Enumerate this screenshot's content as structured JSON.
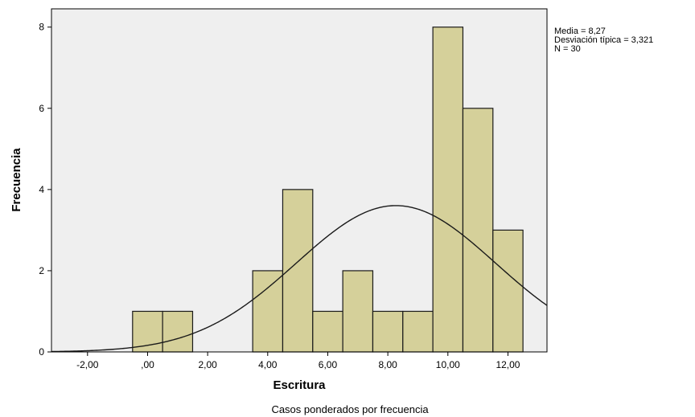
{
  "chart_data": {
    "type": "bar",
    "subtype": "histogram",
    "xlabel": "Escritura",
    "ylabel": "Frecuencia",
    "footnote": "Casos ponderados por frecuencia",
    "stats": {
      "mean_label": "Media = 8,27",
      "sd_label": "Desviación típica = 3,321",
      "n_label": "N = 30",
      "mean": 8.27,
      "sd": 3.321,
      "n": 30
    },
    "bin_width": 1,
    "bins": [
      {
        "center": 0,
        "value": 1
      },
      {
        "center": 1,
        "value": 1
      },
      {
        "center": 4,
        "value": 2
      },
      {
        "center": 5,
        "value": 4
      },
      {
        "center": 6,
        "value": 1
      },
      {
        "center": 7,
        "value": 2
      },
      {
        "center": 8,
        "value": 1
      },
      {
        "center": 9,
        "value": 1
      },
      {
        "center": 10,
        "value": 8
      },
      {
        "center": 11,
        "value": 6
      },
      {
        "center": 12,
        "value": 3
      }
    ],
    "normal_curve": true,
    "xlim": [
      -3.2,
      13.3
    ],
    "ylim": [
      0,
      8.45
    ],
    "xticks": [
      {
        "value": -2,
        "label": "-2,00"
      },
      {
        "value": 0,
        "label": ",00"
      },
      {
        "value": 2,
        "label": "2,00"
      },
      {
        "value": 4,
        "label": "4,00"
      },
      {
        "value": 6,
        "label": "6,00"
      },
      {
        "value": 8,
        "label": "8,00"
      },
      {
        "value": 10,
        "label": "10,00"
      },
      {
        "value": 12,
        "label": "12,00"
      }
    ],
    "yticks": [
      {
        "value": 0,
        "label": "0"
      },
      {
        "value": 2,
        "label": "2"
      },
      {
        "value": 4,
        "label": "4"
      },
      {
        "value": 6,
        "label": "6"
      },
      {
        "value": 8,
        "label": "8"
      }
    ],
    "colors": {
      "plot_background": "#efefef",
      "bar_fill": "#d5d09a",
      "bar_stroke": "#1a1a1a",
      "curve": "#1a1a1a"
    }
  }
}
